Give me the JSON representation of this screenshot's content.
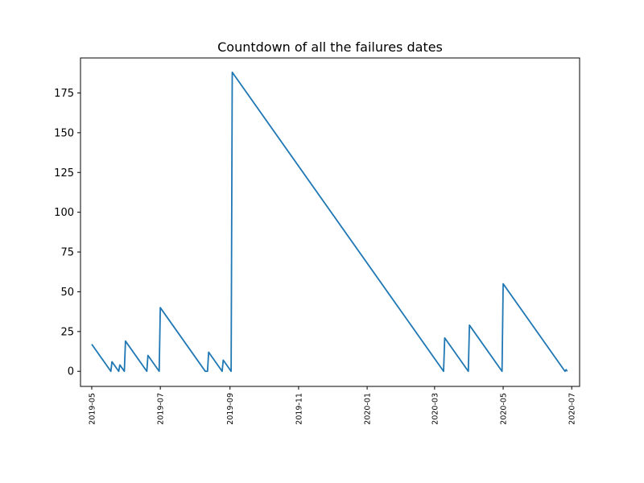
{
  "chart_data": {
    "type": "line",
    "title": "Countdown of all the failures dates",
    "xlabel": "",
    "ylabel": "",
    "x_is_date": true,
    "xlim": [
      "2019-04-21",
      "2020-07-08"
    ],
    "ylim": [
      -9.5,
      197
    ],
    "grid": false,
    "legend": "none",
    "x_ticks": [
      "2019-05",
      "2019-07",
      "2019-09",
      "2019-11",
      "2020-01",
      "2020-03",
      "2020-05",
      "2020-07"
    ],
    "y_ticks": [
      0,
      25,
      50,
      75,
      100,
      125,
      150,
      175
    ],
    "series": [
      {
        "color": "#1f77b4",
        "points": [
          [
            "2019-05-01",
            17
          ],
          [
            "2019-05-18",
            0
          ],
          [
            "2019-05-19",
            6
          ],
          [
            "2019-05-25",
            0
          ],
          [
            "2019-05-26",
            4
          ],
          [
            "2019-05-30",
            0
          ],
          [
            "2019-05-31",
            19
          ],
          [
            "2019-06-19",
            0
          ],
          [
            "2019-06-20",
            10
          ],
          [
            "2019-06-30",
            0
          ],
          [
            "2019-07-01",
            40
          ],
          [
            "2019-08-10",
            0
          ],
          [
            "2019-08-12",
            0
          ],
          [
            "2019-08-13",
            12
          ],
          [
            "2019-08-25",
            0
          ],
          [
            "2019-08-26",
            7
          ],
          [
            "2019-09-02",
            0
          ],
          [
            "2019-09-03",
            188
          ],
          [
            "2020-03-09",
            0
          ],
          [
            "2020-03-10",
            21
          ],
          [
            "2020-03-31",
            0
          ],
          [
            "2020-04-01",
            29
          ],
          [
            "2020-04-30",
            0
          ],
          [
            "2020-05-01",
            55
          ],
          [
            "2020-06-25",
            0
          ],
          [
            "2020-06-26",
            1
          ],
          [
            "2020-06-27",
            0
          ]
        ]
      }
    ]
  }
}
